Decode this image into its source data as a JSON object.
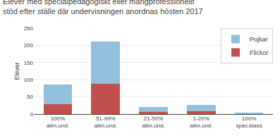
{
  "chart_data": {
    "type": "bar",
    "stacked": true,
    "title": "Elever med specialpedagogiskt eller mångprofessionellt\nstöd efter ställe där undervisningen anordnas hösten 2017",
    "ylabel": "Elever",
    "categories": [
      "100%\nallm.und.",
      "51-99%\nallm.und.",
      "21-50%\nallm.und.",
      "1-20%\nallm.und.",
      "100%\nspec.klass"
    ],
    "series": [
      {
        "name": "Flickor",
        "color": "#C0504D",
        "values": [
          28,
          89,
          7,
          9,
          2
        ]
      },
      {
        "name": "Pojkar",
        "color": "#92BFDB",
        "values": [
          58,
          122,
          13,
          18,
          3
        ]
      }
    ],
    "ylim": [
      0,
      250
    ],
    "yticks": [
      0,
      50,
      100,
      150,
      200,
      250
    ],
    "grid": true,
    "legend": "upper right"
  }
}
